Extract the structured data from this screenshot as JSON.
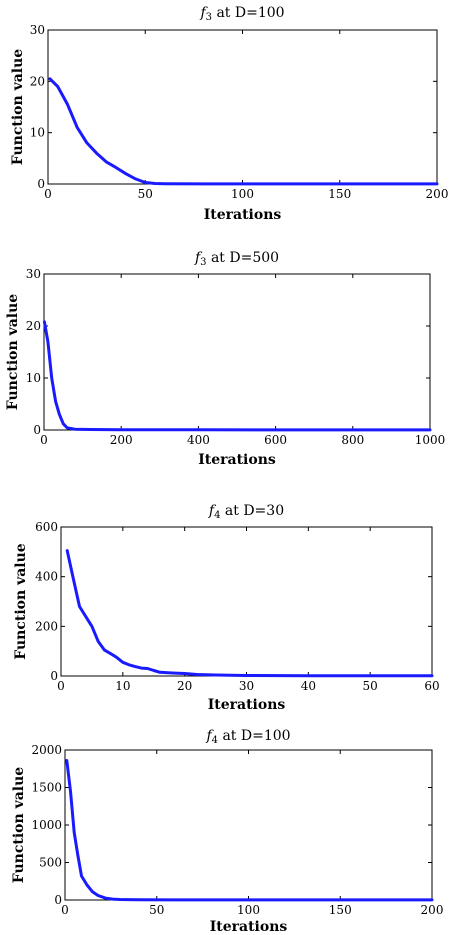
{
  "chart_data": [
    {
      "type": "line",
      "title": "f3 at D=100",
      "title_base": "f",
      "title_sub": "3",
      "title_rest": " at D=100",
      "xlabel": "Iterations",
      "ylabel": "Function value",
      "xlim": [
        0,
        200
      ],
      "ylim": [
        0,
        30
      ],
      "xticks": [
        0,
        50,
        100,
        150,
        200
      ],
      "yticks": [
        0,
        10,
        20,
        30
      ],
      "grid": false,
      "line_color": "#1a1aff",
      "series": [
        {
          "x": [
            1,
            5,
            10,
            15,
            20,
            25,
            30,
            35,
            40,
            45,
            50,
            55,
            60,
            80,
            100,
            150,
            200
          ],
          "y": [
            20.5,
            19.0,
            15.5,
            11.0,
            8.0,
            6.0,
            4.3,
            3.2,
            2.0,
            1.0,
            0.3,
            0.1,
            0.05,
            0.02,
            0.02,
            0.02,
            0.02
          ]
        }
      ]
    },
    {
      "type": "line",
      "title": "f3 at D=500",
      "title_base": "f",
      "title_sub": "3",
      "title_rest": " at D=500",
      "xlabel": "Iterations",
      "ylabel": "Function value",
      "xlim": [
        0,
        1000
      ],
      "ylim": [
        0,
        30
      ],
      "xticks": [
        0,
        200,
        400,
        600,
        800,
        1000
      ],
      "yticks": [
        0,
        10,
        20,
        30
      ],
      "grid": false,
      "line_color": "#1a1aff",
      "series": [
        {
          "x": [
            1,
            10,
            20,
            30,
            40,
            50,
            60,
            80,
            120,
            200,
            400,
            600,
            800,
            1000
          ],
          "y": [
            20.8,
            17.0,
            10.0,
            5.5,
            3.0,
            1.2,
            0.4,
            0.15,
            0.1,
            0.05,
            0.03,
            0.02,
            0.02,
            0.02
          ]
        }
      ]
    },
    {
      "type": "line",
      "title": "f4 at D=30",
      "title_base": "f",
      "title_sub": "4",
      "title_rest": " at D=30",
      "xlabel": "Iterations",
      "ylabel": "Function value",
      "xlim": [
        0,
        60
      ],
      "ylim": [
        0,
        600
      ],
      "xticks": [
        0,
        10,
        20,
        30,
        40,
        50,
        60
      ],
      "yticks": [
        0,
        200,
        400,
        600
      ],
      "grid": false,
      "line_color": "#1a1aff",
      "series": [
        {
          "x": [
            1,
            2,
            3,
            4,
            5,
            6,
            7,
            8,
            9,
            10,
            11,
            12,
            13,
            14,
            15,
            16,
            18,
            20,
            22,
            25,
            30,
            40,
            50,
            60
          ],
          "y": [
            505,
            390,
            280,
            240,
            200,
            140,
            105,
            90,
            75,
            55,
            45,
            38,
            32,
            30,
            22,
            15,
            12,
            10,
            6,
            4,
            2,
            1,
            1,
            1
          ]
        }
      ]
    },
    {
      "type": "line",
      "title": "f4 at D=100",
      "title_base": "f",
      "title_sub": "4",
      "title_rest": " at D=100",
      "xlabel": "Iterations",
      "ylabel": "Function value",
      "xlim": [
        0,
        200
      ],
      "ylim": [
        0,
        2000
      ],
      "xticks": [
        0,
        50,
        100,
        150,
        200
      ],
      "yticks": [
        0,
        500,
        1000,
        1500,
        2000
      ],
      "grid": false,
      "line_color": "#1a1aff",
      "series": [
        {
          "x": [
            1,
            3,
            5,
            7,
            9,
            12,
            15,
            18,
            22,
            26,
            30,
            40,
            60,
            100,
            150,
            200
          ],
          "y": [
            1860,
            1450,
            900,
            600,
            320,
            200,
            110,
            60,
            25,
            12,
            6,
            3,
            2,
            2,
            2,
            2
          ]
        }
      ]
    }
  ]
}
